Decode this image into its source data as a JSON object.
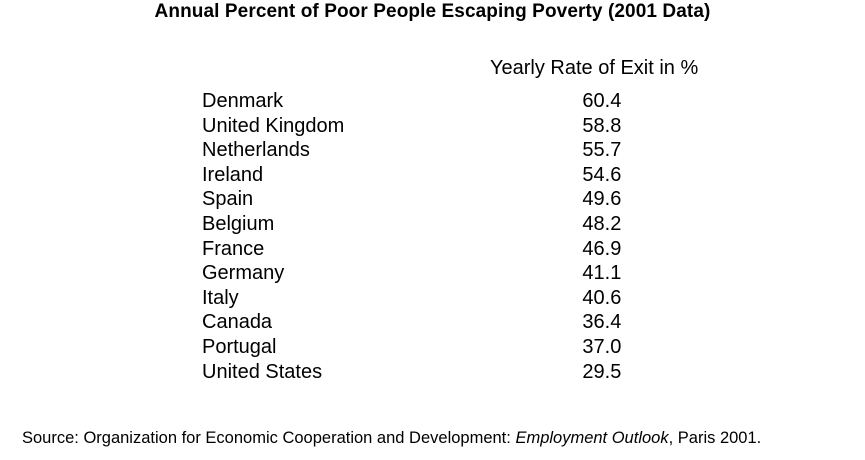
{
  "title": "Annual Percent of Poor People Escaping Poverty (2001 Data)",
  "column_header": "Yearly Rate of Exit in %",
  "rows": [
    {
      "country": "Denmark",
      "value": "60.4"
    },
    {
      "country": "United Kingdom",
      "value": "58.8"
    },
    {
      "country": "Netherlands",
      "value": "55.7"
    },
    {
      "country": "Ireland",
      "value": "54.6"
    },
    {
      "country": "Spain",
      "value": "49.6"
    },
    {
      "country": "Belgium",
      "value": "48.2"
    },
    {
      "country": "France",
      "value": "46.9"
    },
    {
      "country": "Germany",
      "value": "41.1"
    },
    {
      "country": "Italy",
      "value": "40.6"
    },
    {
      "country": "Canada",
      "value": "36.4"
    },
    {
      "country": "Portugal",
      "value": "37.0"
    },
    {
      "country": "United States",
      "value": "29.5"
    }
  ],
  "source": {
    "prefix": "Source: Organization for Economic Cooperation and Development: ",
    "publication": "Employment Outlook",
    "suffix": ", Paris 2001."
  }
}
